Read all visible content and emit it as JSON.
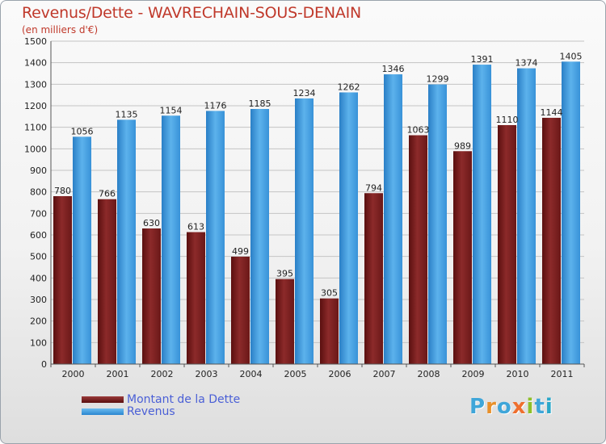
{
  "header": {
    "title": "Revenus/Dette - WAVRECHAIN-SOUS-DENAIN",
    "subtitle": "(en milliers d'€)"
  },
  "logo": {
    "text": "Proxiti"
  },
  "colors": {
    "debt": "#6e1a1a",
    "debt_light": "#9a3a3a",
    "revenue": "#2a86d0",
    "revenue_light": "#5cb2ec",
    "grid": "#c4c4c4",
    "axis_text": "#222222"
  },
  "chart_data": {
    "type": "bar",
    "categories": [
      "2000",
      "2001",
      "2002",
      "2003",
      "2004",
      "2005",
      "2006",
      "2007",
      "2008",
      "2009",
      "2010",
      "2011"
    ],
    "series": [
      {
        "name": "Montant de la Dette",
        "values": [
          780,
          766,
          630,
          613,
          499,
          395,
          305,
          794,
          1063,
          989,
          1110,
          1144
        ]
      },
      {
        "name": "Revenus",
        "values": [
          1056,
          1135,
          1154,
          1176,
          1185,
          1234,
          1262,
          1346,
          1299,
          1391,
          1374,
          1405
        ]
      }
    ],
    "ylim": [
      0,
      1500
    ],
    "yticks": [
      0,
      100,
      200,
      300,
      400,
      500,
      600,
      700,
      800,
      900,
      1000,
      1100,
      1200,
      1300,
      1400,
      1500
    ],
    "grid": true,
    "legend_position": "bottom-left"
  }
}
